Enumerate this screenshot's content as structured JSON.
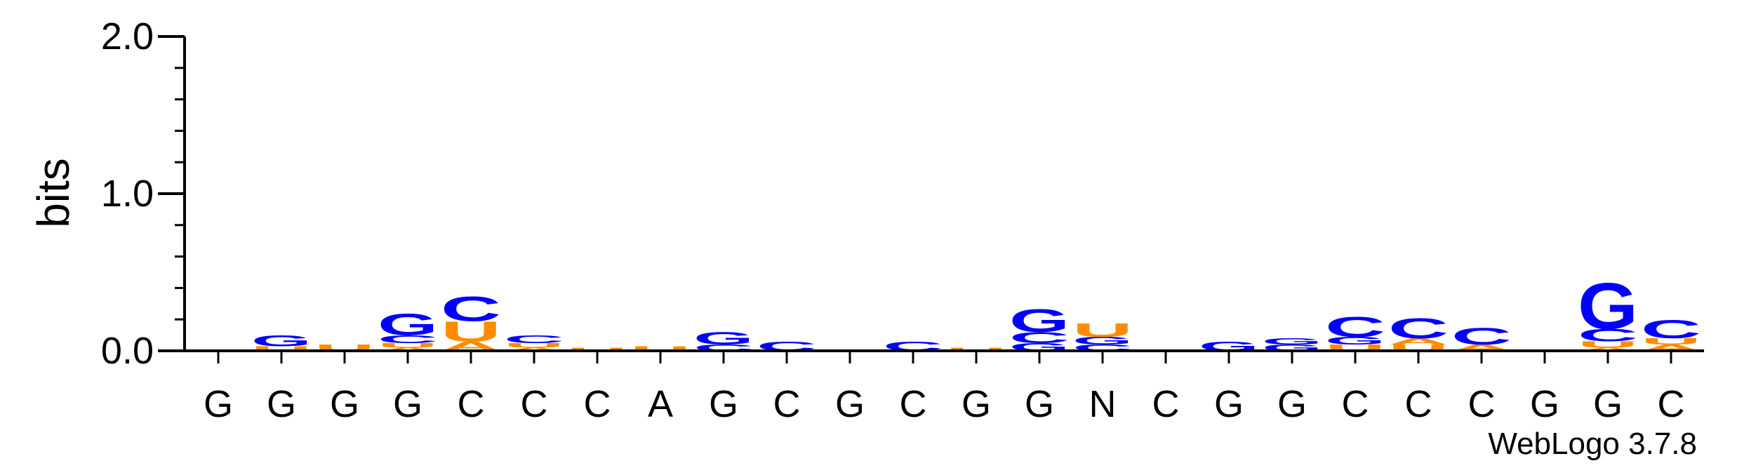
{
  "chart_data": {
    "type": "sequence-logo",
    "ylabel": "bits",
    "ylim": [
      0,
      2.0
    ],
    "yticks": [
      {
        "value": 0.0,
        "label": "0.0"
      },
      {
        "value": 1.0,
        "label": "1.0"
      },
      {
        "value": 2.0,
        "label": "2.0"
      }
    ],
    "xticks": [
      "G",
      "G",
      "G",
      "G",
      "C",
      "C",
      "C",
      "A",
      "G",
      "C",
      "G",
      "C",
      "G",
      "G",
      "N",
      "C",
      "G",
      "G",
      "C",
      "C",
      "C",
      "G",
      "G",
      "C"
    ],
    "colors": {
      "G": "#0000ff",
      "C": "#0000ff",
      "A": "#ff8c00",
      "U": "#ff8c00"
    },
    "stacks": [
      [],
      [
        {
          "letter": "U",
          "bits": 0.03
        },
        {
          "letter": "G",
          "bits": 0.07
        }
      ],
      [
        {
          "letter": "U",
          "bits": 0.04
        }
      ],
      [
        {
          "letter": "A",
          "bits": 0.02
        },
        {
          "letter": "U",
          "bits": 0.03
        },
        {
          "letter": "C",
          "bits": 0.05
        },
        {
          "letter": "G",
          "bits": 0.14
        }
      ],
      [
        {
          "letter": "A",
          "bits": 0.06
        },
        {
          "letter": "U",
          "bits": 0.13
        },
        {
          "letter": "C",
          "bits": 0.16
        }
      ],
      [
        {
          "letter": "A",
          "bits": 0.02
        },
        {
          "letter": "U",
          "bits": 0.03
        },
        {
          "letter": "C",
          "bits": 0.05
        }
      ],
      [
        {
          "letter": "U",
          "bits": 0.02
        }
      ],
      [
        {
          "letter": "U",
          "bits": 0.03
        }
      ],
      [
        {
          "letter": "C",
          "bits": 0.04
        },
        {
          "letter": "G",
          "bits": 0.08
        }
      ],
      [
        {
          "letter": "C",
          "bits": 0.06
        }
      ],
      [],
      [
        {
          "letter": "C",
          "bits": 0.06
        }
      ],
      [
        {
          "letter": "U",
          "bits": 0.02
        }
      ],
      [
        {
          "letter": "G",
          "bits": 0.05
        },
        {
          "letter": "C",
          "bits": 0.07
        },
        {
          "letter": "G",
          "bits": 0.15
        }
      ],
      [
        {
          "letter": "C",
          "bits": 0.04
        },
        {
          "letter": "G",
          "bits": 0.05
        },
        {
          "letter": "U",
          "bits": 0.09
        }
      ],
      [],
      [
        {
          "letter": "G",
          "bits": 0.06
        }
      ],
      [
        {
          "letter": "G",
          "bits": 0.04
        },
        {
          "letter": "G",
          "bits": 0.04
        }
      ],
      [
        {
          "letter": "U",
          "bits": 0.04
        },
        {
          "letter": "G",
          "bits": 0.05
        },
        {
          "letter": "C",
          "bits": 0.13
        }
      ],
      [
        {
          "letter": "U",
          "bits": 0.04
        },
        {
          "letter": "A",
          "bits": 0.04
        },
        {
          "letter": "C",
          "bits": 0.13
        }
      ],
      [
        {
          "letter": "A",
          "bits": 0.04
        },
        {
          "letter": "C",
          "bits": 0.11
        }
      ],
      [],
      [
        {
          "letter": "A",
          "bits": 0.02
        },
        {
          "letter": "U",
          "bits": 0.04
        },
        {
          "letter": "C",
          "bits": 0.08
        },
        {
          "letter": "G",
          "bits": 0.3
        }
      ],
      [
        {
          "letter": "A",
          "bits": 0.04
        },
        {
          "letter": "U",
          "bits": 0.04
        },
        {
          "letter": "C",
          "bits": 0.12
        }
      ]
    ]
  },
  "footer": {
    "credit": "WebLogo 3.7.8"
  }
}
